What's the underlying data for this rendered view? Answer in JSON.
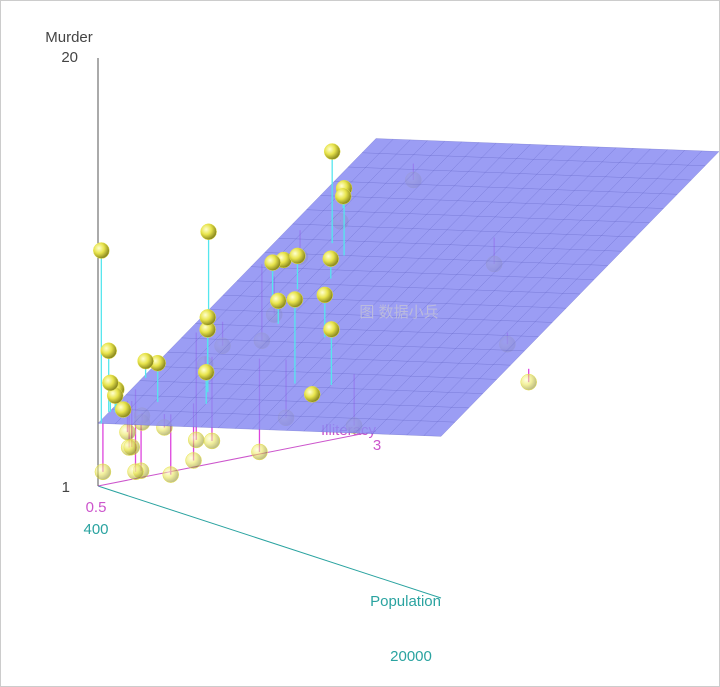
{
  "chart_data": {
    "type": "scatter3d",
    "x_label": "Population",
    "y_label": "Illiteracy",
    "z_label": "Murder",
    "watermark": "图 数据小兵",
    "x": [
      3615,
      365,
      2212,
      2110,
      21198,
      2541,
      3100,
      579,
      8277,
      4931,
      868,
      813,
      11197,
      5313,
      2861,
      2280,
      3387,
      3806,
      1058,
      4122,
      5814,
      9111,
      3921,
      2341,
      4767,
      746,
      1544,
      590,
      812,
      7333,
      1144,
      18076,
      5441,
      637,
      10735,
      2715,
      2284,
      11860,
      931,
      2816,
      681,
      4173,
      12237,
      1203,
      472,
      4981,
      3559,
      1799,
      4589,
      376
    ],
    "y": [
      2.1,
      1.5,
      1.8,
      1.9,
      1.1,
      0.7,
      1.1,
      0.9,
      1.3,
      2.0,
      1.9,
      0.6,
      0.9,
      0.7,
      0.5,
      0.6,
      1.6,
      2.8,
      0.7,
      0.9,
      1.1,
      0.9,
      0.6,
      2.4,
      0.8,
      0.6,
      0.6,
      0.5,
      0.7,
      1.1,
      2.2,
      1.4,
      1.8,
      0.8,
      0.8,
      1.1,
      0.6,
      1.0,
      1.3,
      2.3,
      0.5,
      1.7,
      2.2,
      0.6,
      0.6,
      1.4,
      0.6,
      1.4,
      0.7,
      0.6
    ],
    "z": [
      15.1,
      11.3,
      7.8,
      10.1,
      10.3,
      6.8,
      3.1,
      6.2,
      10.7,
      13.9,
      6.2,
      5.3,
      10.3,
      7.1,
      2.3,
      4.5,
      10.6,
      13.2,
      2.7,
      8.5,
      3.3,
      11.1,
      2.3,
      12.5,
      9.3,
      5.0,
      2.9,
      11.5,
      3.3,
      5.2,
      9.7,
      10.9,
      11.1,
      1.4,
      7.4,
      6.4,
      4.2,
      6.1,
      2.4,
      11.6,
      1.7,
      11.0,
      12.2,
      4.5,
      5.5,
      9.5,
      4.3,
      6.7,
      3.0,
      6.9
    ],
    "xlim": [
      400,
      20000
    ],
    "ylim": [
      0.5,
      3
    ],
    "zlim": [
      1,
      20
    ],
    "xticks": [
      400,
      20000
    ],
    "yticks": [
      0.5,
      3
    ],
    "zticks": [
      1,
      20
    ],
    "color": "#e8e44c",
    "plane_color": "#8a8cf2",
    "x_axis_color": "#2aa3a0",
    "y_axis_color": "#cc55cc",
    "z_axis_color": "#555555",
    "above_color": "#55e6ee",
    "below_color": "#dd44dd"
  }
}
